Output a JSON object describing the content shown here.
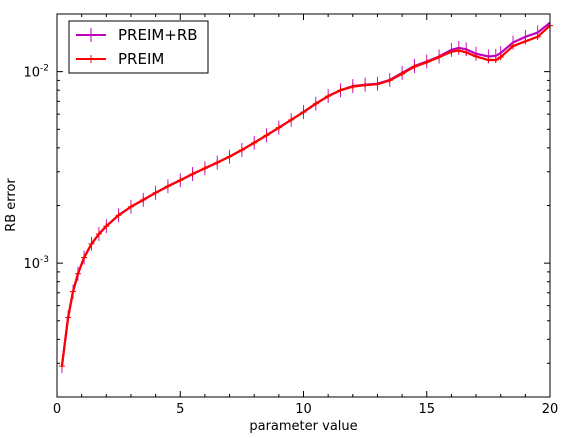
{
  "chart_data": {
    "type": "line",
    "xlabel": "parameter value",
    "ylabel": "RB error",
    "xlim": [
      0,
      20
    ],
    "ylim": [
      0.0002,
      0.02
    ],
    "yscale": "log",
    "grid": false,
    "legend_position": "top-left",
    "x_ticks": [
      {
        "value": 0,
        "label": "0"
      },
      {
        "value": 5,
        "label": "5"
      },
      {
        "value": 10,
        "label": "10"
      },
      {
        "value": 15,
        "label": "15"
      },
      {
        "value": 20,
        "label": "20"
      }
    ],
    "y_ticks": [
      {
        "value": 0.001,
        "base": "10",
        "exp": "-3"
      },
      {
        "value": 0.01,
        "base": "10",
        "exp": "-2"
      }
    ],
    "x": [
      0.2,
      0.45,
      0.65,
      0.85,
      1.1,
      1.4,
      1.7,
      2.0,
      2.5,
      3.0,
      3.5,
      4.0,
      4.5,
      5.0,
      5.5,
      6.0,
      6.5,
      7.0,
      7.5,
      8.0,
      8.5,
      9.0,
      9.5,
      10.0,
      10.5,
      11.0,
      11.5,
      12.0,
      12.5,
      13.0,
      13.5,
      14.0,
      14.5,
      15.0,
      15.5,
      16.0,
      16.3,
      16.6,
      17.0,
      17.5,
      17.8,
      18.0,
      18.5,
      19.0,
      19.5,
      20.0
    ],
    "series": [
      {
        "name": "PREIM+RB",
        "color": "#bf00bf",
        "marker": "vline",
        "values": [
          0.00029,
          0.00052,
          0.00071,
          0.00088,
          0.00107,
          0.00126,
          0.00142,
          0.00156,
          0.00178,
          0.00197,
          0.00214,
          0.00233,
          0.00252,
          0.00271,
          0.00292,
          0.00313,
          0.00335,
          0.0036,
          0.0039,
          0.00425,
          0.00465,
          0.0051,
          0.0056,
          0.00615,
          0.0068,
          0.00745,
          0.008,
          0.0084,
          0.00855,
          0.00865,
          0.00905,
          0.00985,
          0.0107,
          0.0113,
          0.012,
          0.013,
          0.0133,
          0.0131,
          0.0124,
          0.012,
          0.0121,
          0.0125,
          0.0142,
          0.0152,
          0.016,
          0.018
        ]
      },
      {
        "name": "PREIM",
        "color": "#ff0000",
        "marker": "plus",
        "values": [
          0.00029,
          0.00052,
          0.00071,
          0.00088,
          0.00107,
          0.00126,
          0.00142,
          0.00156,
          0.00178,
          0.00197,
          0.00214,
          0.00233,
          0.00252,
          0.00271,
          0.00292,
          0.00313,
          0.00335,
          0.0036,
          0.0039,
          0.00425,
          0.00465,
          0.0051,
          0.0056,
          0.00615,
          0.0068,
          0.00745,
          0.008,
          0.00835,
          0.0085,
          0.0086,
          0.009,
          0.00975,
          0.0106,
          0.0112,
          0.0119,
          0.0127,
          0.0129,
          0.0126,
          0.012,
          0.0115,
          0.0115,
          0.0119,
          0.0136,
          0.0144,
          0.0152,
          0.0174
        ]
      }
    ]
  }
}
